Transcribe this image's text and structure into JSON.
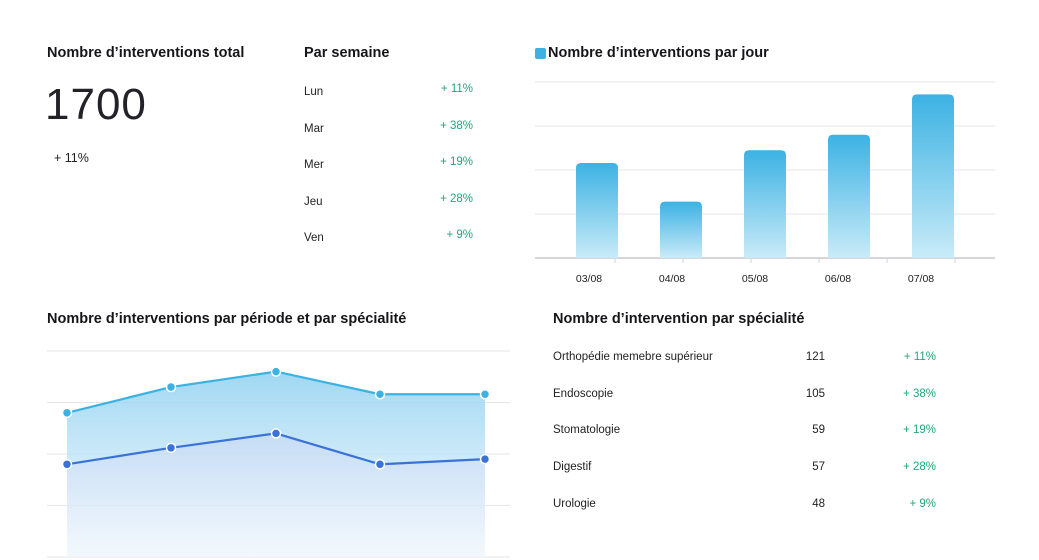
{
  "total": {
    "title": "Nombre d’interventions total",
    "value": "1700",
    "change": "+ 11%"
  },
  "weekly": {
    "title": "Par semaine",
    "rows": [
      {
        "day": "Lun",
        "change": "+ 11%"
      },
      {
        "day": "Mar",
        "change": "+ 38%"
      },
      {
        "day": "Mer",
        "change": "+ 19%"
      },
      {
        "day": "Jeu",
        "change": "+ 28%"
      },
      {
        "day": "Ven",
        "change": "+ 9%"
      }
    ]
  },
  "daily": {
    "legend": "Nombre d’interventions par jour"
  },
  "period": {
    "title": "Nombre d’interventions par période et par spécialité"
  },
  "specialty": {
    "title": "Nombre d’intervention par spécialité",
    "rows": [
      {
        "name": "Orthopédie memebre supérieur",
        "count": "121",
        "change": "+ 11%"
      },
      {
        "name": "Endoscopie",
        "count": "105",
        "change": "+ 38%"
      },
      {
        "name": "Stomatologie",
        "count": "59",
        "change": "+ 19%"
      },
      {
        "name": "Digestif",
        "count": "57",
        "change": "+ 28%"
      },
      {
        "name": "Urologie",
        "count": "48",
        "change": "+ 9%"
      }
    ]
  },
  "colors": {
    "accent": "#3cb2e3",
    "series2": "#3a72d8",
    "positive": "#1fa67a",
    "grid": "#e6e6ea"
  },
  "chart_data": [
    {
      "type": "bar",
      "title": "Nombre d’interventions par jour",
      "categories": [
        "03/08",
        "04/08",
        "05/08",
        "06/08",
        "07/08"
      ],
      "values": [
        216,
        128,
        245,
        280,
        372
      ],
      "ylim": [
        0,
        400
      ],
      "grid": true,
      "legend": "top-left"
    },
    {
      "type": "area",
      "title": "Nombre d’interventions par période et par spécialité",
      "x": [
        1,
        2,
        3,
        4,
        5
      ],
      "ylim": [
        0,
        200
      ],
      "grid": true,
      "series": [
        {
          "values": [
            140,
            165,
            180,
            158,
            158
          ]
        },
        {
          "values": [
            90,
            106,
            120,
            90,
            95
          ]
        }
      ]
    }
  ]
}
